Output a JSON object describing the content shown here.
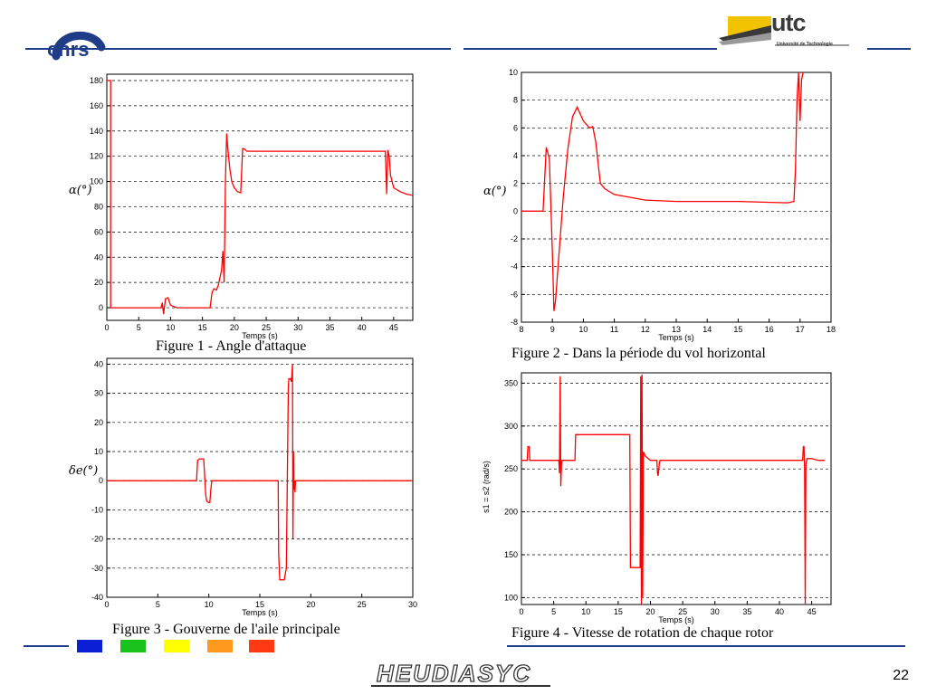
{
  "colors": {
    "accent": "#1f3c88",
    "series": "#ff0000",
    "squares": [
      "#0a1fd6",
      "#19c21c",
      "#ffff00",
      "#ff9a1e",
      "#ff3a12"
    ]
  },
  "logos": {
    "left": "cnrs",
    "right_main": "utc",
    "right_sub": "Université de Technologie",
    "bottom": "HEUDIASYC"
  },
  "page_number": "22",
  "chart_data": [
    {
      "type": "line",
      "caption": "Figure 1 - Angle d'attaque",
      "xlabel": "Temps (s)",
      "ylabel": "α(°)",
      "xlim": [
        0,
        48
      ],
      "ylim": [
        -10,
        185
      ],
      "xticks": [
        0,
        5,
        10,
        15,
        20,
        25,
        30,
        35,
        40,
        45
      ],
      "yticks": [
        0,
        20,
        40,
        60,
        80,
        100,
        120,
        140,
        160,
        180
      ],
      "grid": "horizontal-dashed",
      "series": [
        {
          "x": [
            0,
            0.6,
            0.6,
            8.5,
            8.7,
            8.9,
            9.2,
            9.6,
            10,
            10.5,
            11,
            13,
            16.2,
            16.5,
            16.8,
            17.2,
            17.5,
            18,
            18.2,
            18.4,
            18.6,
            18.8,
            19,
            19.3,
            19.6,
            20,
            20.5,
            21,
            21.3,
            21.5,
            22,
            23,
            24,
            25,
            30,
            35,
            43.5,
            43.7,
            43.9,
            44.1,
            44.3,
            44.5,
            45,
            46,
            47,
            48
          ],
          "y": [
            180,
            180,
            0,
            0,
            4,
            -5,
            7,
            8,
            2,
            1,
            0,
            0,
            0,
            12,
            15,
            14,
            18,
            30,
            45,
            20,
            100,
            138,
            125,
            110,
            100,
            95,
            92,
            91,
            126,
            126,
            124,
            124,
            124,
            124,
            124,
            124,
            124,
            124,
            90,
            125,
            120,
            105,
            95,
            92,
            90,
            89
          ]
        }
      ]
    },
    {
      "type": "line",
      "caption": "Figure 2 - Dans la période du vol horizontal",
      "xlabel": "Temps (s)",
      "ylabel": "α(°)",
      "xlim": [
        8,
        18
      ],
      "ylim": [
        -8,
        10
      ],
      "xticks": [
        8,
        9,
        10,
        11,
        12,
        13,
        14,
        15,
        16,
        17,
        18
      ],
      "yticks": [
        -8,
        -6,
        -4,
        -2,
        0,
        2,
        4,
        6,
        8,
        10
      ],
      "grid": "horizontal-dashed",
      "series": [
        {
          "x": [
            8,
            8.7,
            8.8,
            8.9,
            9,
            9.05,
            9.1,
            9.2,
            9.35,
            9.5,
            9.65,
            9.8,
            10,
            10.2,
            10.3,
            10.4,
            10.55,
            10.7,
            11,
            12,
            13,
            14,
            15,
            16.6,
            16.8,
            16.85,
            16.9,
            16.95,
            17,
            17.05,
            17.1
          ],
          "y": [
            0,
            0,
            4.6,
            3.8,
            -3,
            -7.2,
            -6.5,
            -3.5,
            1,
            4.5,
            6.8,
            7.5,
            6.5,
            6,
            6.1,
            5,
            2,
            1.6,
            1.2,
            0.8,
            0.7,
            0.7,
            0.7,
            0.6,
            0.7,
            3,
            8,
            10,
            6.5,
            9.5,
            10
          ]
        }
      ]
    },
    {
      "type": "line",
      "caption": "Figure 3 - Gouverne de l'aile principale",
      "xlabel": "Temps (s)",
      "ylabel": "δe(°)",
      "xlim": [
        0,
        30
      ],
      "ylim": [
        -40,
        42
      ],
      "xticks": [
        0,
        5,
        10,
        15,
        20,
        25,
        30
      ],
      "yticks": [
        -40,
        -30,
        -20,
        -10,
        0,
        10,
        20,
        30,
        40
      ],
      "grid": "horizontal-dashed",
      "series": [
        {
          "x": [
            0,
            8.8,
            8.9,
            9.1,
            9.3,
            9.5,
            9.7,
            9.8,
            10,
            10.1,
            10.2,
            10.3,
            10.4,
            16.8,
            16.85,
            16.95,
            17.1,
            17.4,
            17.6,
            17.8,
            17.85,
            18,
            18.1,
            18.2,
            18.25,
            18.3,
            18.35,
            18.4,
            18.45,
            18.5,
            18.55,
            30
          ],
          "y": [
            0,
            0,
            7,
            7.5,
            7.5,
            7.5,
            -5,
            -7,
            -7.5,
            -7.5,
            -3,
            0,
            0,
            0,
            -25,
            -34,
            -34,
            -34,
            -30,
            32,
            35,
            35,
            34,
            40,
            -20,
            10,
            -3,
            0,
            -4,
            0,
            0,
            0
          ]
        }
      ]
    },
    {
      "type": "line",
      "caption": "Figure 4 - Vitesse de rotation de chaque rotor",
      "xlabel": "Temps (s)",
      "ylabel": "s1 = s2 (rad/s)",
      "xlim": [
        0,
        48
      ],
      "ylim": [
        92,
        362
      ],
      "xticks": [
        0,
        5,
        10,
        15,
        20,
        25,
        30,
        35,
        40,
        45
      ],
      "yticks": [
        100,
        150,
        200,
        250,
        300,
        350
      ],
      "grid": "horizontal-dashed",
      "series": [
        {
          "x": [
            0,
            0.9,
            1,
            1.2,
            1.3,
            5.8,
            5.9,
            6,
            6.1,
            6.2,
            6.3,
            6.4,
            8.3,
            8.4,
            16.8,
            16.9,
            18.4,
            18.5,
            18.6,
            18.7,
            18.8,
            18.9,
            19.2,
            20,
            21,
            21.1,
            21.2,
            21.4,
            21.5,
            22,
            30,
            40,
            43.6,
            43.7,
            43.8,
            43.9,
            44,
            44.1,
            44.3,
            45,
            46,
            47
          ],
          "y": [
            260,
            260,
            276,
            276,
            260,
            260,
            245,
            358,
            230,
            255,
            260,
            260,
            260,
            290,
            290,
            135,
            135,
            358,
            92,
            360,
            100,
            270,
            265,
            260,
            260,
            245,
            242,
            258,
            260,
            260,
            260,
            260,
            260,
            276,
            276,
            250,
            93,
            255,
            262,
            262,
            260,
            260
          ]
        }
      ]
    }
  ]
}
